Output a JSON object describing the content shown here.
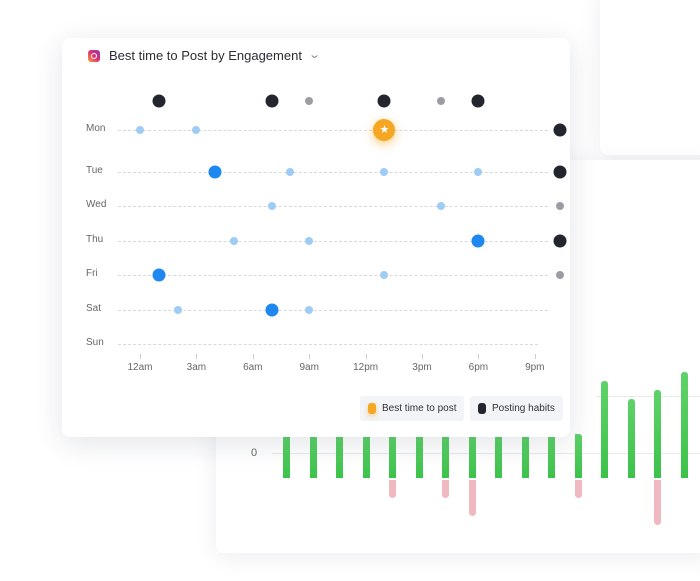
{
  "header": {
    "title": "Best time to Post by Engagement",
    "platform_icon": "instagram-icon"
  },
  "colors": {
    "best": "#f5a623",
    "habit": "#23262e",
    "habit_light": "#9a9da3",
    "high": "#1e88f0",
    "low": "#9fccf5",
    "green": "#3cc24a",
    "pink": "#f0b8c0"
  },
  "days": [
    "Mon",
    "Tue",
    "Wed",
    "Thu",
    "Fri",
    "Sat",
    "Sun"
  ],
  "hour_labels": [
    {
      "h": 0,
      "label": "12am"
    },
    {
      "h": 3,
      "label": "3am"
    },
    {
      "h": 6,
      "label": "6am"
    },
    {
      "h": 9,
      "label": "9am"
    },
    {
      "h": 12,
      "label": "12pm"
    },
    {
      "h": 15,
      "label": "3pm"
    },
    {
      "h": 18,
      "label": "6pm"
    },
    {
      "h": 21,
      "label": "9pm"
    }
  ],
  "posting_habits_top": [
    {
      "h": 1,
      "k": "habit"
    },
    {
      "h": 7,
      "k": "habit"
    },
    {
      "h": 9,
      "k": "habit_light"
    },
    {
      "h": 13,
      "k": "habit"
    },
    {
      "h": 16,
      "k": "habit_light"
    },
    {
      "h": 18,
      "k": "habit"
    }
  ],
  "posting_habits_day": [
    "habit",
    "habit",
    "habit_light",
    "habit",
    "habit_light",
    null,
    null
  ],
  "engagement": [
    [
      {
        "h": 0,
        "k": "low"
      },
      {
        "h": 3,
        "k": "low"
      },
      {
        "h": 13,
        "k": "best"
      }
    ],
    [
      {
        "h": 4,
        "k": "high"
      },
      {
        "h": 8,
        "k": "low"
      },
      {
        "h": 13,
        "k": "low"
      },
      {
        "h": 18,
        "k": "low"
      }
    ],
    [
      {
        "h": 7,
        "k": "low"
      },
      {
        "h": 16,
        "k": "low"
      }
    ],
    [
      {
        "h": 5,
        "k": "low"
      },
      {
        "h": 9,
        "k": "low"
      },
      {
        "h": 18,
        "k": "high"
      }
    ],
    [
      {
        "h": 1,
        "k": "high"
      },
      {
        "h": 13,
        "k": "low"
      }
    ],
    [
      {
        "h": 2,
        "k": "low"
      },
      {
        "h": 7,
        "k": "high"
      },
      {
        "h": 9,
        "k": "low"
      }
    ],
    []
  ],
  "legend": {
    "best": "Best time to post",
    "habits": "Posting habits"
  },
  "bar_chart": {
    "zero_label": "0",
    "positive": [
      1,
      1,
      1,
      1,
      1,
      1,
      1,
      1,
      1,
      1,
      1,
      1,
      2.2,
      1.8,
      2.0,
      2.4
    ],
    "negative": [
      0,
      0,
      0,
      0,
      0.4,
      0,
      0.4,
      0.8,
      0,
      0,
      0,
      0.4,
      0,
      0,
      1.0,
      0
    ]
  }
}
